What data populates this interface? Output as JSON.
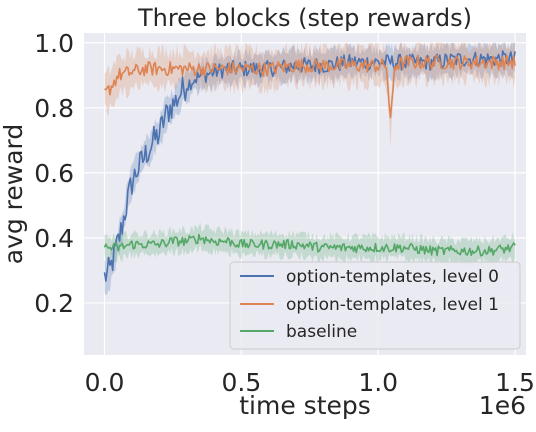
{
  "chart_data": {
    "type": "line",
    "title": "Three blocks (step rewards)",
    "xlabel": "time steps",
    "ylabel": "avg reward",
    "x_scale_label": "1e6",
    "xlim": [
      -0.075,
      1.54
    ],
    "ylim": [
      0.04,
      1.03
    ],
    "x_ticks": [
      0.0,
      0.5,
      1.0,
      1.5
    ],
    "x_tick_labels": [
      "0.0",
      "0.5",
      "1.0",
      "1.5"
    ],
    "y_ticks": [
      0.2,
      0.4,
      0.6,
      0.8,
      1.0
    ],
    "y_tick_labels": [
      "0.2",
      "0.4",
      "0.6",
      "0.8",
      "1.0"
    ],
    "grid": true,
    "legend_position": "bottom-right",
    "series": [
      {
        "name": "option-templates, level 0",
        "color": "#4c72b0",
        "x": [
          0.0,
          0.02,
          0.04,
          0.06,
          0.08,
          0.1,
          0.12,
          0.14,
          0.16,
          0.18,
          0.2,
          0.22,
          0.24,
          0.26,
          0.28,
          0.3,
          0.33,
          0.36,
          0.4,
          0.45,
          0.5,
          0.6,
          0.7,
          0.8,
          0.9,
          1.0,
          1.1,
          1.2,
          1.3,
          1.4,
          1.5
        ],
        "y": [
          0.28,
          0.3,
          0.36,
          0.42,
          0.5,
          0.57,
          0.61,
          0.64,
          0.67,
          0.7,
          0.72,
          0.77,
          0.8,
          0.82,
          0.85,
          0.87,
          0.89,
          0.9,
          0.91,
          0.92,
          0.92,
          0.92,
          0.93,
          0.93,
          0.94,
          0.94,
          0.94,
          0.94,
          0.95,
          0.95,
          0.95
        ]
      },
      {
        "name": "option-templates, level 1",
        "color": "#dd8452",
        "x": [
          0.0,
          0.02,
          0.05,
          0.1,
          0.15,
          0.2,
          0.3,
          0.4,
          0.5,
          0.6,
          0.7,
          0.8,
          0.9,
          1.0,
          1.03,
          1.045,
          1.06,
          1.1,
          1.2,
          1.3,
          1.4,
          1.5
        ],
        "y": [
          0.84,
          0.86,
          0.9,
          0.91,
          0.92,
          0.92,
          0.92,
          0.92,
          0.92,
          0.92,
          0.93,
          0.93,
          0.93,
          0.93,
          0.93,
          0.75,
          0.93,
          0.94,
          0.94,
          0.94,
          0.94,
          0.94
        ]
      },
      {
        "name": "baseline",
        "color": "#55a868",
        "x": [
          0.0,
          0.05,
          0.1,
          0.15,
          0.2,
          0.25,
          0.3,
          0.35,
          0.4,
          0.45,
          0.5,
          0.6,
          0.7,
          0.8,
          0.9,
          1.0,
          1.1,
          1.2,
          1.3,
          1.4,
          1.5
        ],
        "y": [
          0.37,
          0.37,
          0.38,
          0.38,
          0.38,
          0.39,
          0.39,
          0.4,
          0.39,
          0.39,
          0.38,
          0.38,
          0.38,
          0.37,
          0.37,
          0.37,
          0.37,
          0.36,
          0.36,
          0.36,
          0.37
        ]
      }
    ]
  }
}
